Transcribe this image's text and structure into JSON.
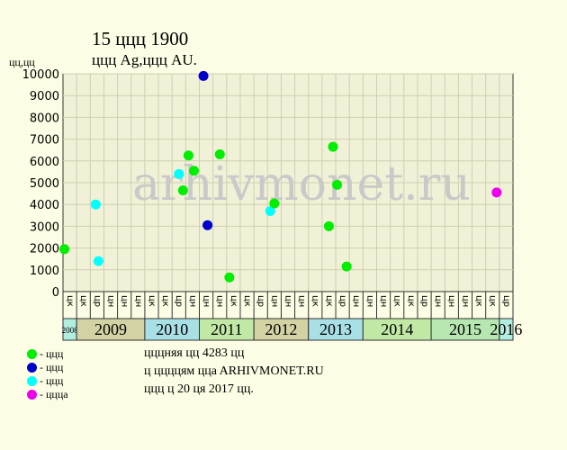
{
  "header": {
    "title": "15 ццц 1900",
    "subtitle": "ццц Ag,ццц AU.",
    "y_unit": "цц,цц"
  },
  "legend": [
    {
      "color": "#00ee00",
      "label": "- ццц"
    },
    {
      "color": "#0000cc",
      "label": "- ццц"
    },
    {
      "color": "#00ffff",
      "label": "- ццц"
    },
    {
      "color": "#ee00ee",
      "label": "- цццa"
    }
  ],
  "info": {
    "line1": "цццняя цц 4283 цц",
    "line2": "ц ццццям ццa ARHIVMONET.RU",
    "line3": "ццц ц 20 ця 2017 цц."
  },
  "watermark": "arhivmonet.ru",
  "colors": {
    "background": "#fdfde5",
    "plot_bg": "#f1f1d7",
    "grid": "#cfcfb3",
    "green": "#00ee00",
    "blue": "#0000cc",
    "cyan": "#00ffff",
    "magenta": "#ee00ee"
  },
  "chart_data": {
    "type": "scatter",
    "ylim": [
      0,
      10000
    ],
    "yticks": [
      0,
      1000,
      2000,
      3000,
      4000,
      5000,
      6000,
      7000,
      8000,
      9000,
      10000
    ],
    "month_labels": [
      "цк",
      "цк",
      "цр",
      "цн",
      "цн",
      "цн",
      "цк",
      "цк",
      "цр",
      "цн",
      "цн",
      "цн",
      "цк",
      "цк",
      "цр",
      "цн",
      "цн",
      "цн",
      "цк",
      "цк",
      "цр",
      "цн",
      "цн",
      "цн",
      "цк",
      "цк",
      "цр",
      "цн",
      "цн",
      "цн",
      "цк",
      "цк",
      "цр",
      "цн",
      "цн",
      "цн",
      "цк",
      "цк",
      "цр",
      "цн",
      "цн",
      "цн",
      "цк",
      "цк",
      "цр",
      "цн",
      "цн",
      "цн",
      "цк",
      "цк",
      "цр",
      "цн",
      "цн",
      "цн",
      "цк",
      "цк",
      "цр",
      "цн",
      "цн",
      "цн",
      "цк",
      "цк",
      "цр",
      "цн",
      "цн",
      "цн",
      "цк",
      "цк",
      "цр",
      "цн",
      "цн",
      "цн",
      "цк",
      "цк",
      "цр",
      "цн",
      "цн",
      "цн",
      "цк",
      "цк",
      "цр",
      "цн",
      "цн"
    ],
    "years": [
      {
        "label": "2008",
        "cells": 1,
        "color": "#b2eedf"
      },
      {
        "label": "2009",
        "cells": 5,
        "color": "#d2d2a2"
      },
      {
        "label": "2010",
        "cells": 4,
        "color": "#a9e0e5"
      },
      {
        "label": "2011",
        "cells": 4,
        "color": "#c1e9a5"
      },
      {
        "label": "2012",
        "cells": 4,
        "color": "#d2d2a2"
      },
      {
        "label": "2013",
        "cells": 4,
        "color": "#a9e0e5"
      },
      {
        "label": "2014",
        "cells": 5,
        "color": "#c1e9a5"
      },
      {
        "label": "2015",
        "cells": 5,
        "color": "#b6e7b1"
      },
      {
        "label": "2016",
        "cells": 3,
        "color": "#b2eedf"
      }
    ],
    "points": [
      {
        "x": 0.1,
        "y": 1950,
        "color": "green"
      },
      {
        "x": 2.4,
        "y": 4000,
        "color": "cyan"
      },
      {
        "x": 2.6,
        "y": 1400,
        "color": "cyan"
      },
      {
        "x": 8.5,
        "y": 5400,
        "color": "cyan"
      },
      {
        "x": 8.8,
        "y": 4650,
        "color": "green"
      },
      {
        "x": 9.2,
        "y": 6250,
        "color": "green"
      },
      {
        "x": 9.6,
        "y": 5550,
        "color": "green"
      },
      {
        "x": 10.3,
        "y": 9900,
        "color": "blue"
      },
      {
        "x": 10.6,
        "y": 3050,
        "color": "blue"
      },
      {
        "x": 11.5,
        "y": 6300,
        "color": "green"
      },
      {
        "x": 12.2,
        "y": 650,
        "color": "green"
      },
      {
        "x": 15.2,
        "y": 3700,
        "color": "cyan"
      },
      {
        "x": 15.5,
        "y": 4050,
        "color": "green"
      },
      {
        "x": 19.5,
        "y": 3000,
        "color": "green"
      },
      {
        "x": 19.8,
        "y": 6650,
        "color": "green"
      },
      {
        "x": 20.1,
        "y": 4900,
        "color": "green"
      },
      {
        "x": 20.8,
        "y": 1150,
        "color": "green"
      },
      {
        "x": 31.8,
        "y": 4550,
        "color": "magenta"
      }
    ]
  }
}
